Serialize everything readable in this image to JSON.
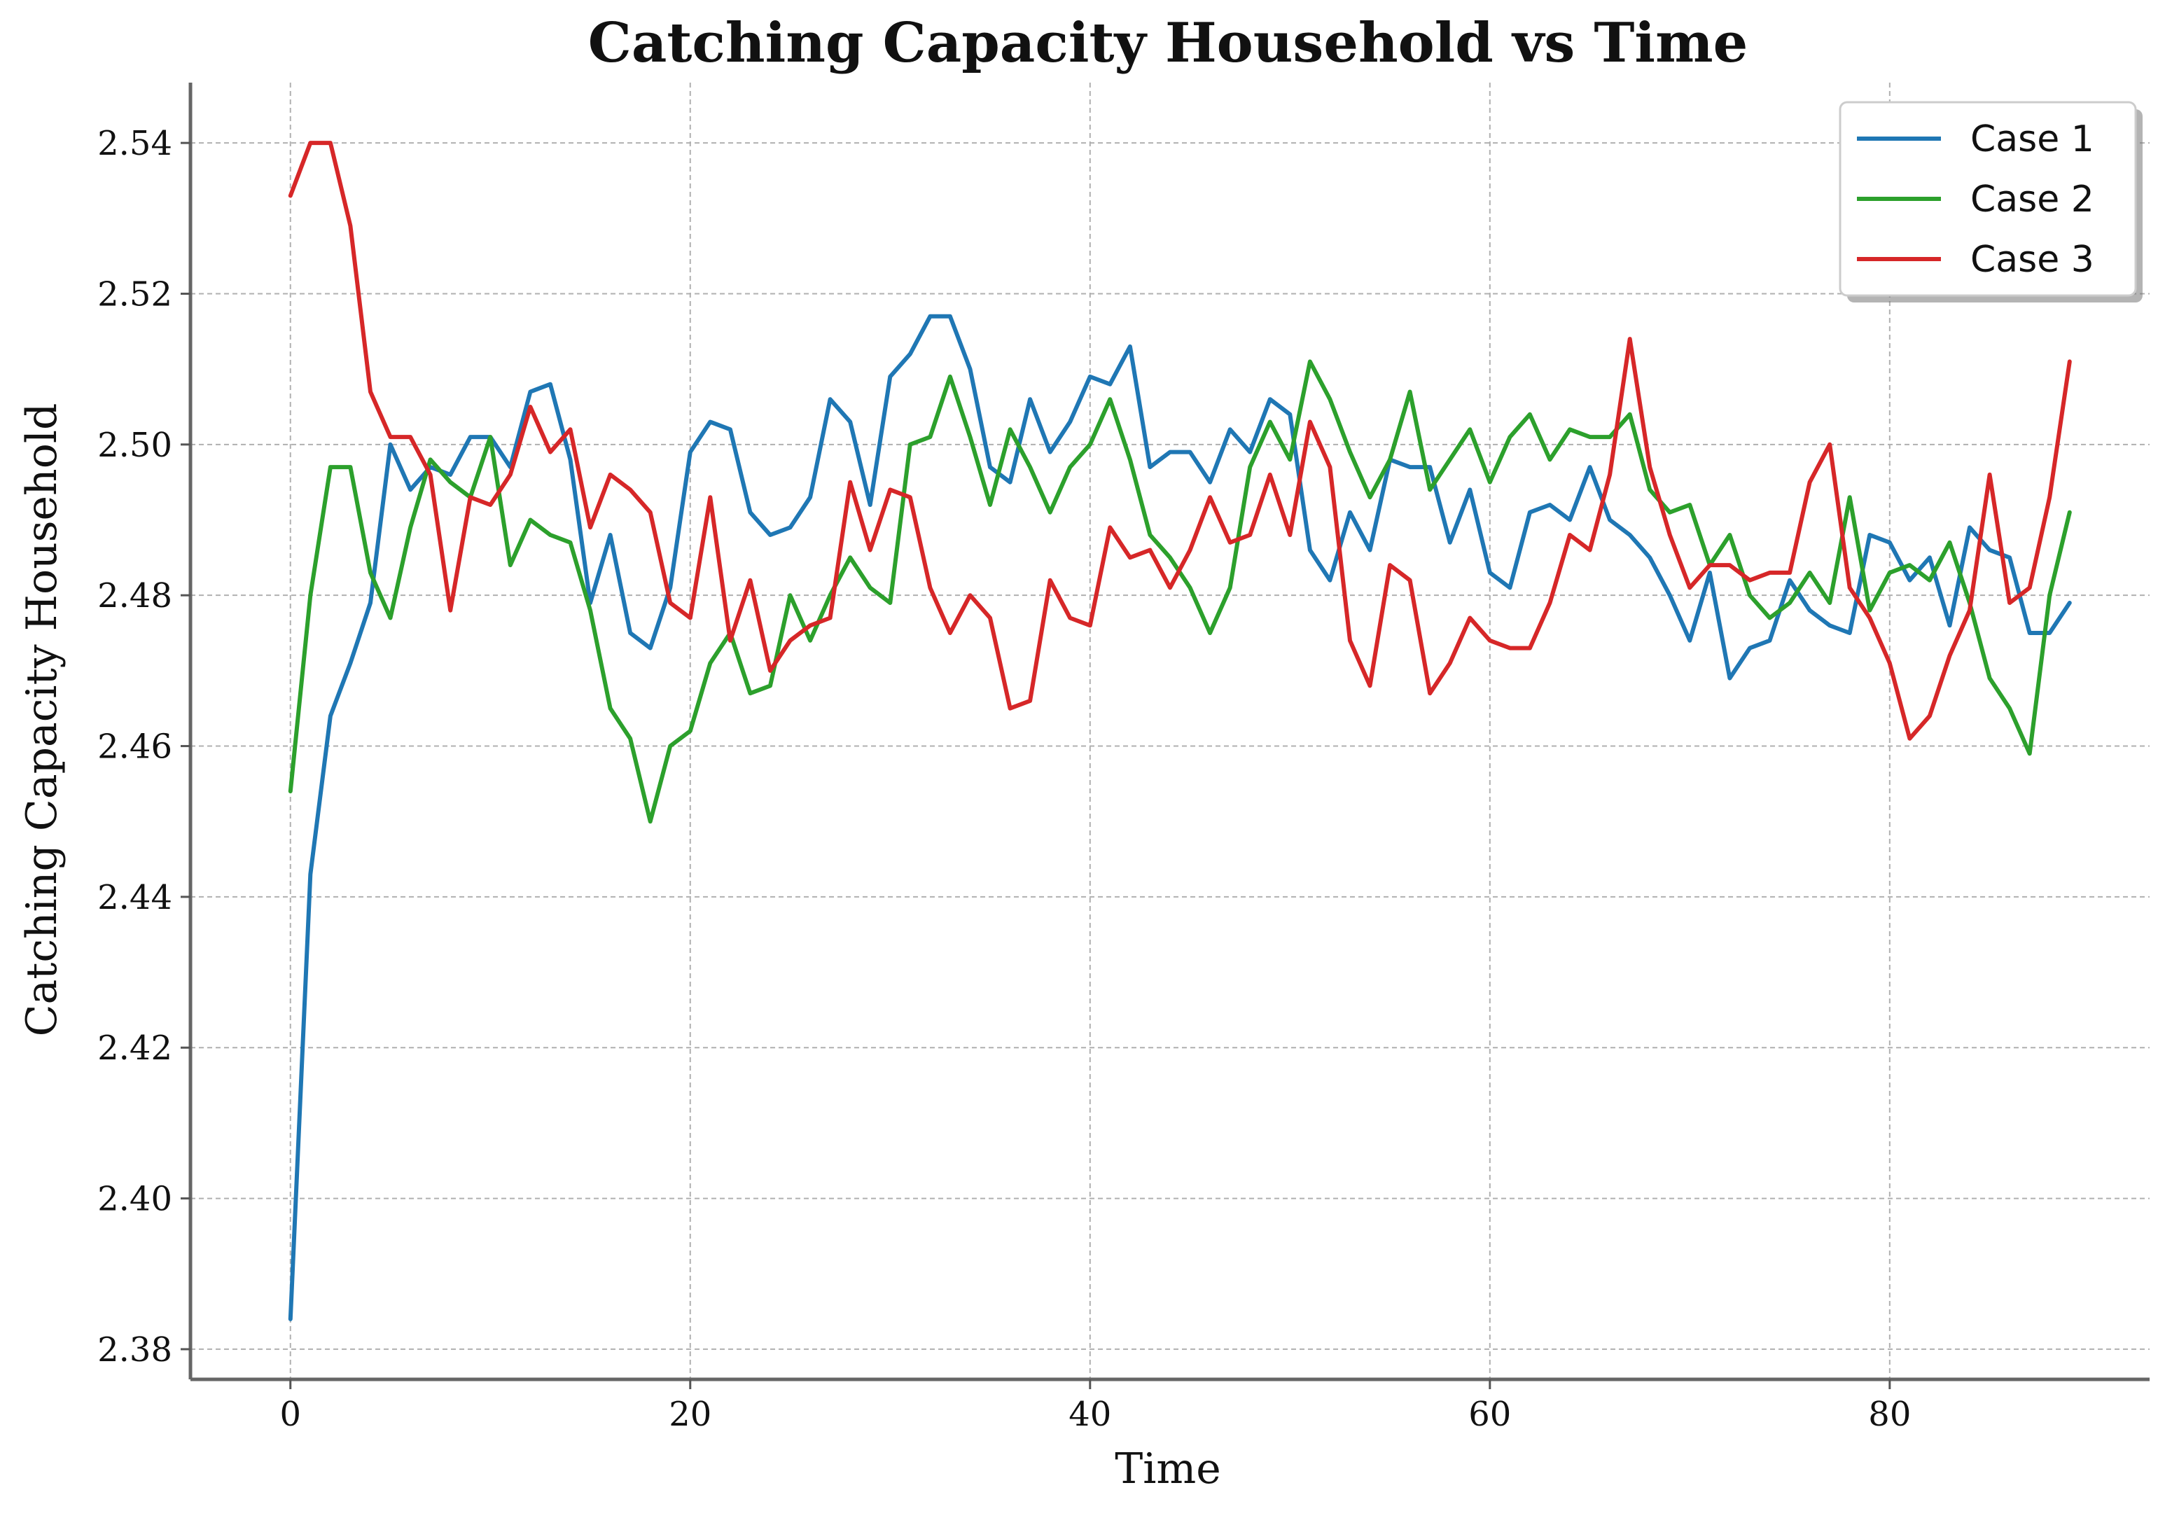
{
  "chart_data": {
    "type": "line",
    "title": "Catching Capacity Household vs Time",
    "xlabel": "Time",
    "ylabel": "Catching Capacity Household",
    "xlim": [
      -5,
      93
    ],
    "ylim": [
      2.376,
      2.548
    ],
    "xticks": [
      0,
      20,
      40,
      60,
      80
    ],
    "xtick_labels": [
      "0",
      "20",
      "40",
      "60",
      "80"
    ],
    "yticks": [
      2.38,
      2.4,
      2.42,
      2.44,
      2.46,
      2.48,
      2.5,
      2.52,
      2.54
    ],
    "ytick_labels": [
      "2.38",
      "2.40",
      "2.42",
      "2.44",
      "2.46",
      "2.48",
      "2.50",
      "2.52",
      "2.54"
    ],
    "grid": true,
    "legend_position": "top-right",
    "series": [
      {
        "name": "Case 1",
        "color": "#1f77b4",
        "x": [
          0,
          1,
          2,
          3,
          4,
          5,
          6,
          7,
          8,
          9,
          10,
          11,
          12,
          13,
          14,
          15,
          16,
          17,
          18,
          19,
          20,
          21,
          22,
          23,
          24,
          25,
          26,
          27,
          28,
          29,
          30,
          31,
          32,
          33,
          34,
          35,
          36,
          37,
          38,
          39,
          40,
          41,
          42,
          43,
          44,
          45,
          46,
          47,
          48,
          49,
          50,
          51,
          52,
          53,
          54,
          55,
          56,
          57,
          58,
          59,
          60,
          61,
          62,
          63,
          64,
          65,
          66,
          67,
          68,
          69,
          70,
          71,
          72,
          73,
          74,
          75,
          76,
          77,
          78,
          79,
          80,
          81,
          82,
          83,
          84,
          85,
          86,
          87,
          88,
          89
        ],
        "y": [
          2.384,
          2.443,
          2.464,
          2.471,
          2.479,
          2.5,
          2.494,
          2.497,
          2.496,
          2.501,
          2.501,
          2.497,
          2.507,
          2.508,
          2.498,
          2.479,
          2.488,
          2.475,
          2.473,
          2.481,
          2.499,
          2.503,
          2.502,
          2.491,
          2.488,
          2.489,
          2.493,
          2.506,
          2.503,
          2.492,
          2.509,
          2.512,
          2.517,
          2.517,
          2.51,
          2.497,
          2.495,
          2.506,
          2.499,
          2.503,
          2.509,
          2.508,
          2.513,
          2.497,
          2.499,
          2.499,
          2.495,
          2.502,
          2.499,
          2.506,
          2.504,
          2.486,
          2.482,
          2.491,
          2.486,
          2.498,
          2.497,
          2.497,
          2.487,
          2.494,
          2.483,
          2.481,
          2.491,
          2.492,
          2.49,
          2.497,
          2.49,
          2.488,
          2.485,
          2.48,
          2.474,
          2.483,
          2.469,
          2.473,
          2.474,
          2.482,
          2.478,
          2.476,
          2.475,
          2.488,
          2.487,
          2.482,
          2.485,
          2.476,
          2.489,
          2.486,
          2.485,
          2.475,
          2.475,
          2.479
        ]
      },
      {
        "name": "Case 2",
        "color": "#2ca02c",
        "x": [
          0,
          1,
          2,
          3,
          4,
          5,
          6,
          7,
          8,
          9,
          10,
          11,
          12,
          13,
          14,
          15,
          16,
          17,
          18,
          19,
          20,
          21,
          22,
          23,
          24,
          25,
          26,
          27,
          28,
          29,
          30,
          31,
          32,
          33,
          34,
          35,
          36,
          37,
          38,
          39,
          40,
          41,
          42,
          43,
          44,
          45,
          46,
          47,
          48,
          49,
          50,
          51,
          52,
          53,
          54,
          55,
          56,
          57,
          58,
          59,
          60,
          61,
          62,
          63,
          64,
          65,
          66,
          67,
          68,
          69,
          70,
          71,
          72,
          73,
          74,
          75,
          76,
          77,
          78,
          79,
          80,
          81,
          82,
          83,
          84,
          85,
          86,
          87,
          88,
          89
        ],
        "y": [
          2.454,
          2.48,
          2.497,
          2.497,
          2.483,
          2.477,
          2.489,
          2.498,
          2.495,
          2.493,
          2.501,
          2.484,
          2.49,
          2.488,
          2.487,
          2.478,
          2.465,
          2.461,
          2.45,
          2.46,
          2.462,
          2.471,
          2.475,
          2.467,
          2.468,
          2.48,
          2.474,
          2.48,
          2.485,
          2.481,
          2.479,
          2.5,
          2.501,
          2.509,
          2.501,
          2.492,
          2.502,
          2.497,
          2.491,
          2.497,
          2.5,
          2.506,
          2.498,
          2.488,
          2.485,
          2.481,
          2.475,
          2.481,
          2.497,
          2.503,
          2.498,
          2.511,
          2.506,
          2.499,
          2.493,
          2.498,
          2.507,
          2.494,
          2.498,
          2.502,
          2.495,
          2.501,
          2.504,
          2.498,
          2.502,
          2.501,
          2.501,
          2.504,
          2.494,
          2.491,
          2.492,
          2.484,
          2.488,
          2.48,
          2.477,
          2.479,
          2.483,
          2.479,
          2.493,
          2.478,
          2.483,
          2.484,
          2.482,
          2.487,
          2.479,
          2.469,
          2.465,
          2.459,
          2.48,
          2.491
        ]
      },
      {
        "name": "Case 3",
        "color": "#d62728",
        "x": [
          0,
          1,
          2,
          3,
          4,
          5,
          6,
          7,
          8,
          9,
          10,
          11,
          12,
          13,
          14,
          15,
          16,
          17,
          18,
          19,
          20,
          21,
          22,
          23,
          24,
          25,
          26,
          27,
          28,
          29,
          30,
          31,
          32,
          33,
          34,
          35,
          36,
          37,
          38,
          39,
          40,
          41,
          42,
          43,
          44,
          45,
          46,
          47,
          48,
          49,
          50,
          51,
          52,
          53,
          54,
          55,
          56,
          57,
          58,
          59,
          60,
          61,
          62,
          63,
          64,
          65,
          66,
          67,
          68,
          69,
          70,
          71,
          72,
          73,
          74,
          75,
          76,
          77,
          78,
          79,
          80,
          81,
          82,
          83,
          84,
          85,
          86,
          87,
          88,
          89
        ],
        "y": [
          2.533,
          2.54,
          2.54,
          2.529,
          2.507,
          2.501,
          2.501,
          2.496,
          2.478,
          2.493,
          2.492,
          2.496,
          2.505,
          2.499,
          2.502,
          2.489,
          2.496,
          2.494,
          2.491,
          2.479,
          2.477,
          2.493,
          2.474,
          2.482,
          2.47,
          2.474,
          2.476,
          2.477,
          2.495,
          2.486,
          2.494,
          2.493,
          2.481,
          2.475,
          2.48,
          2.477,
          2.465,
          2.466,
          2.482,
          2.477,
          2.476,
          2.489,
          2.485,
          2.486,
          2.481,
          2.486,
          2.493,
          2.487,
          2.488,
          2.496,
          2.488,
          2.503,
          2.497,
          2.474,
          2.468,
          2.484,
          2.482,
          2.467,
          2.471,
          2.477,
          2.474,
          2.473,
          2.473,
          2.479,
          2.488,
          2.486,
          2.496,
          2.514,
          2.497,
          2.488,
          2.481,
          2.484,
          2.484,
          2.482,
          2.483,
          2.483,
          2.495,
          2.5,
          2.481,
          2.477,
          2.471,
          2.461,
          2.464,
          2.472,
          2.478,
          2.496,
          2.479,
          2.481,
          2.493,
          2.511
        ]
      }
    ]
  }
}
